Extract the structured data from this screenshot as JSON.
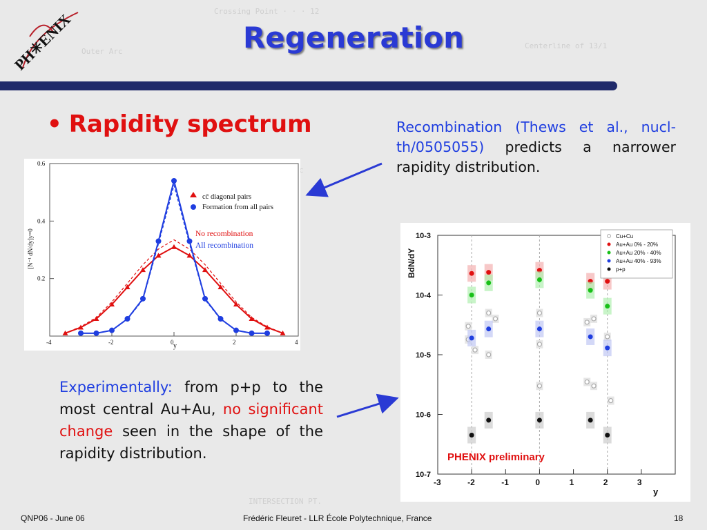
{
  "slide": {
    "title": "Regeneration",
    "bullet": "Rapidity spectrum",
    "logo_text": "PH✳ENIX"
  },
  "recombination_text": {
    "lead": "Recombination (Thews et al., nucl-th/0505055)",
    "rest": " predicts a narrower rapidity distribution."
  },
  "experiment_text": {
    "lead": "Experimentally:",
    "middle": " from p+p to the most central Au+Au, ",
    "highlight": "no significant change",
    "rest": " seen in the shape of the rapidity distribution."
  },
  "footer": {
    "left": "QNP06 - June 06",
    "center": "Frédéric Fleuret - LLR École Polytechnique, France",
    "page": "18"
  },
  "colors": {
    "title": "#2a3ad4",
    "accent_red": "#e01010",
    "accent_blue": "#1f3ee0",
    "bar": "#202a6a"
  },
  "chart_data": [
    {
      "type": "line",
      "ylabel": "[N⁻¹ dN/dy]y=0",
      "xlabel": "y",
      "xlim": [
        -4,
        4
      ],
      "ylim": [
        0,
        0.6
      ],
      "xticks": [
        "-4",
        "-2",
        "0",
        "2",
        "4"
      ],
      "yticks": [
        "0.2",
        "0.4",
        "0.6"
      ],
      "legend": [
        "cc̄ diagonal pairs",
        "Formation from all pairs"
      ],
      "annotations": [
        "No recombination",
        "All recombination"
      ],
      "series": [
        {
          "name": "No recombination",
          "color": "#e01010",
          "x": [
            -3.5,
            -3.0,
            -2.5,
            -2.0,
            -1.5,
            -1.0,
            -0.5,
            0.0,
            0.5,
            1.0,
            1.5,
            2.0,
            2.5,
            3.0,
            3.5
          ],
          "values": [
            0.01,
            0.03,
            0.06,
            0.11,
            0.17,
            0.23,
            0.28,
            0.31,
            0.28,
            0.23,
            0.17,
            0.11,
            0.06,
            0.03,
            0.01
          ]
        },
        {
          "name": "All recombination",
          "color": "#1f3ee0",
          "x": [
            -3.0,
            -2.5,
            -2.0,
            -1.5,
            -1.0,
            -0.5,
            0.0,
            0.5,
            1.0,
            1.5,
            2.0,
            2.5,
            3.0
          ],
          "values": [
            0.01,
            0.01,
            0.02,
            0.06,
            0.13,
            0.33,
            0.54,
            0.33,
            0.13,
            0.06,
            0.02,
            0.01,
            0.01
          ]
        }
      ]
    },
    {
      "type": "scatter",
      "ylabel": "BdN/dY",
      "xlabel": "y",
      "xlim": [
        -3,
        4
      ],
      "ylim_log10": [
        -7,
        -3
      ],
      "yscale": "log",
      "xticks": [
        "-3",
        "-2",
        "-1",
        "0",
        "1",
        "2",
        "3"
      ],
      "yticks": [
        "10-7",
        "10-6",
        "10-5",
        "10-4",
        "10-3"
      ],
      "annotation": "PHENIX preliminary",
      "series": [
        {
          "name": "Cu+Cu",
          "color": "#aaaaaa",
          "x": [
            -2.1,
            -2.1,
            -1.9,
            -1.5,
            -1.3,
            -1.5,
            0.0,
            0.0,
            0.0,
            1.4,
            1.6,
            1.4,
            1.6,
            2.0,
            2.1
          ],
          "y": [
            3e-05,
            1.8e-05,
            1.2e-05,
            5e-05,
            4e-05,
            1e-05,
            5e-05,
            1.5e-05,
            3e-06,
            3.5e-05,
            4e-05,
            3.5e-06,
            3e-06,
            2e-05,
            1.7e-06
          ]
        },
        {
          "name": "Au+Au 0% - 20%",
          "color": "#e01010",
          "x": [
            -2.0,
            -1.5,
            0.0,
            1.5,
            2.0
          ],
          "y": [
            0.00023,
            0.00024,
            0.00026,
            0.00017,
            0.00017
          ]
        },
        {
          "name": "Au+Au 20% - 40%",
          "color": "#18c018",
          "x": [
            -2.0,
            -1.5,
            0.0,
            1.5,
            2.0
          ],
          "y": [
            0.0001,
            0.00016,
            0.00018,
            0.00012,
            6.5e-05
          ]
        },
        {
          "name": "Au+Au 40% - 93%",
          "color": "#1f3ee0",
          "x": [
            -2.0,
            -1.5,
            0.0,
            1.5,
            2.0
          ],
          "y": [
            1.9e-05,
            2.7e-05,
            2.7e-05,
            2e-05,
            1.3e-05
          ]
        },
        {
          "name": "p+p",
          "color": "#111111",
          "x": [
            -2.0,
            -1.5,
            0.0,
            1.5,
            2.0
          ],
          "y": [
            4.5e-07,
            8e-07,
            8e-07,
            8e-07,
            4.5e-07
          ]
        }
      ]
    }
  ]
}
